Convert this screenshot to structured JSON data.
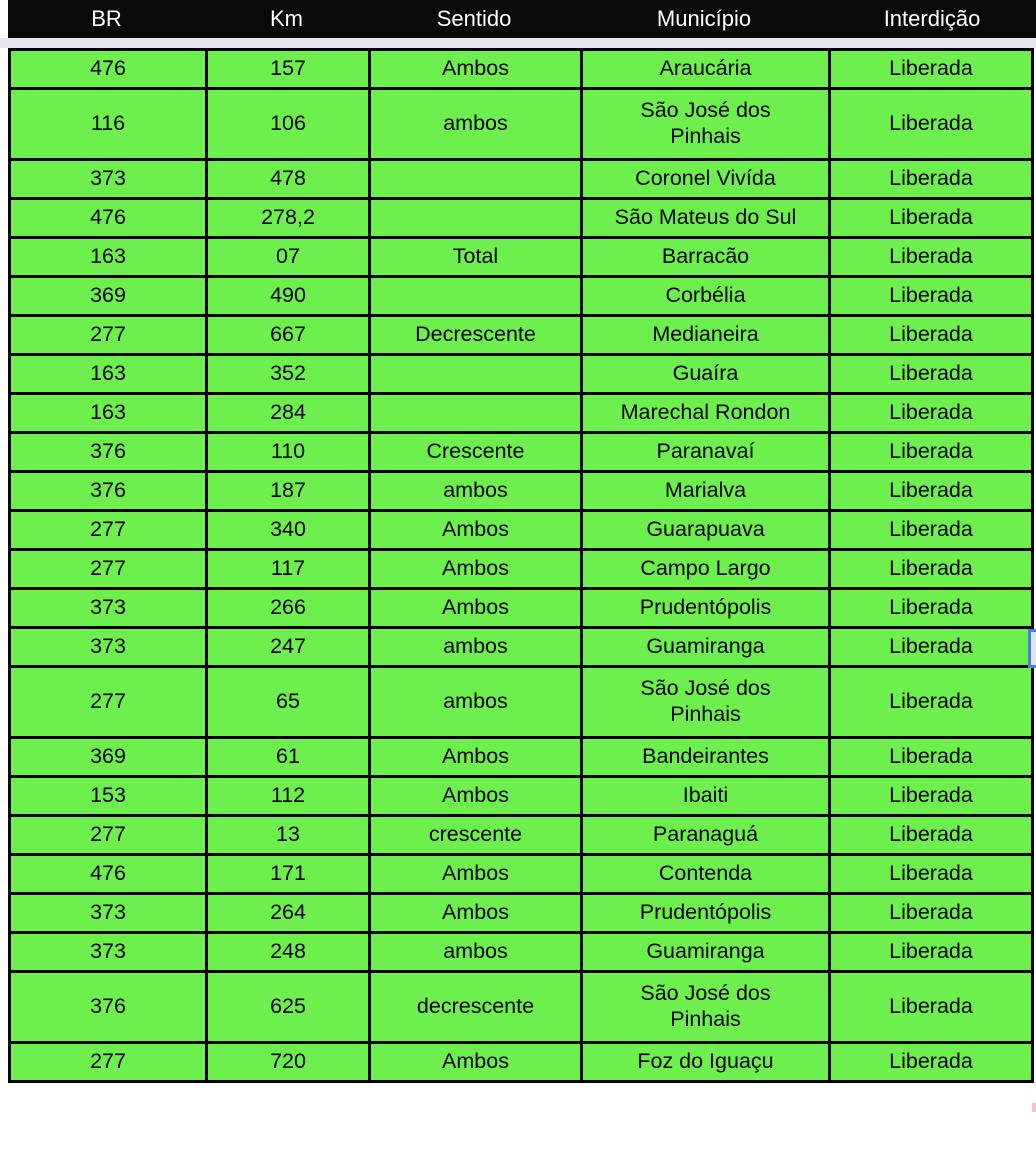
{
  "header": {
    "columns": [
      {
        "key": "br",
        "label": "BR"
      },
      {
        "key": "km",
        "label": "Km"
      },
      {
        "key": "sentido",
        "label": "Sentido"
      },
      {
        "key": "municipio",
        "label": "Município"
      },
      {
        "key": "interdicao",
        "label": "Interdição"
      }
    ]
  },
  "table": {
    "rows": [
      {
        "br": "476",
        "km": "157",
        "sentido": "Ambos",
        "municipio": "Araucária",
        "interdicao": "Liberada"
      },
      {
        "br": "116",
        "km": "106",
        "sentido": "ambos",
        "municipio": "São José dos\nPinhais",
        "interdicao": "Liberada"
      },
      {
        "br": "373",
        "km": "478",
        "sentido": "",
        "municipio": "Coronel Vivída",
        "interdicao": "Liberada"
      },
      {
        "br": "476",
        "km": "278,2",
        "sentido": "",
        "municipio": "São Mateus do Sul",
        "interdicao": "Liberada"
      },
      {
        "br": "163",
        "km": "07",
        "sentido": "Total",
        "municipio": "Barracão",
        "interdicao": "Liberada"
      },
      {
        "br": "369",
        "km": "490",
        "sentido": "",
        "municipio": "Corbélia",
        "interdicao": "Liberada"
      },
      {
        "br": "277",
        "km": "667",
        "sentido": "Decrescente",
        "municipio": "Medianeira",
        "interdicao": "Liberada"
      },
      {
        "br": "163",
        "km": "352",
        "sentido": "",
        "municipio": "Guaíra",
        "interdicao": "Liberada"
      },
      {
        "br": "163",
        "km": "284",
        "sentido": "",
        "municipio": "Marechal Rondon",
        "interdicao": "Liberada"
      },
      {
        "br": "376",
        "km": "110",
        "sentido": "Crescente",
        "municipio": "Paranavaí",
        "interdicao": "Liberada"
      },
      {
        "br": "376",
        "km": "187",
        "sentido": "ambos",
        "municipio": "Marialva",
        "interdicao": "Liberada"
      },
      {
        "br": "277",
        "km": "340",
        "sentido": "Ambos",
        "municipio": "Guarapuava",
        "interdicao": "Liberada"
      },
      {
        "br": "277",
        "km": "117",
        "sentido": "Ambos",
        "municipio": "Campo Largo",
        "interdicao": "Liberada"
      },
      {
        "br": "373",
        "km": "266",
        "sentido": "Ambos",
        "municipio": "Prudentópolis",
        "interdicao": "Liberada"
      },
      {
        "br": "373",
        "km": "247",
        "sentido": "ambos",
        "municipio": "Guamiranga",
        "interdicao": "Liberada"
      },
      {
        "br": "277",
        "km": "65",
        "sentido": "ambos",
        "municipio": "São José dos\nPinhais",
        "interdicao": "Liberada"
      },
      {
        "br": "369",
        "km": "61",
        "sentido": "Ambos",
        "municipio": "Bandeirantes",
        "interdicao": "Liberada"
      },
      {
        "br": "153",
        "km": "112",
        "sentido": "Ambos",
        "municipio": "Ibaiti",
        "interdicao": "Liberada"
      },
      {
        "br": "277",
        "km": "13",
        "sentido": "crescente",
        "municipio": "Paranaguá",
        "interdicao": "Liberada"
      },
      {
        "br": "476",
        "km": "171",
        "sentido": "Ambos",
        "municipio": "Contenda",
        "interdicao": "Liberada"
      },
      {
        "br": "373",
        "km": "264",
        "sentido": "Ambos",
        "municipio": "Prudentópolis",
        "interdicao": "Liberada"
      },
      {
        "br": "373",
        "km": "248",
        "sentido": "ambos",
        "municipio": "Guamiranga",
        "interdicao": "Liberada"
      },
      {
        "br": "376",
        "km": "625",
        "sentido": "decrescente",
        "municipio": "São José dos\nPinhais",
        "interdicao": "Liberada"
      },
      {
        "br": "277",
        "km": "720",
        "sentido": "Ambos",
        "municipio": "Foz do Iguaçu",
        "interdicao": "Liberada"
      }
    ]
  },
  "colors": {
    "row_green": "#6df04e",
    "header_bg": "#0a0a0a",
    "header_text": "#ffffff",
    "gap_gray": "#e6e8eb",
    "border_black": "#000000",
    "selection_blue": "#4f7ee3"
  }
}
